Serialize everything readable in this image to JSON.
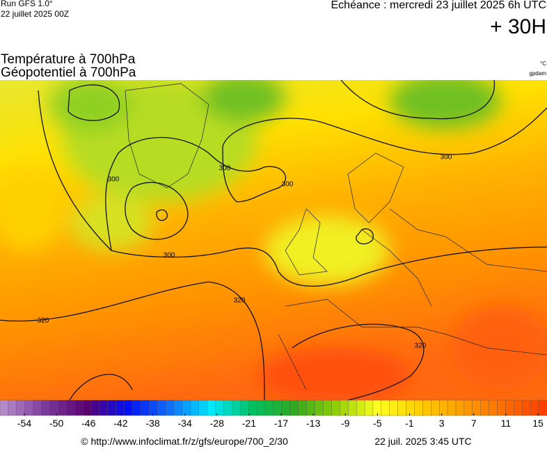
{
  "header": {
    "run": "Run GFS 1.0°",
    "run_date": "22 juillet 2025 00Z",
    "echeance": "Echéance : mercredi 23 juillet 2025 6h UTC",
    "lead": "+ 30H",
    "title1": "Température à 700hPa",
    "title2": "Géopotentiel à 700hPa",
    "unit1": "°C",
    "unit2": "gpdam"
  },
  "contour_labels": [
    "300",
    "300",
    "300",
    "300",
    "300",
    "320",
    "320",
    "320"
  ],
  "colorbar": {
    "ticks": [
      -54,
      -50,
      -46,
      -42,
      -38,
      -34,
      -28,
      -21,
      -17,
      -13,
      -9,
      -5,
      -1,
      3,
      7,
      11,
      15
    ],
    "colors": [
      "#b58ac8",
      "#7a3a9a",
      "#5a0070",
      "#0010ff",
      "#1070ff",
      "#00e8ff",
      "#00c060",
      "#30a820",
      "#90d000",
      "#ffff20",
      "#ffd000",
      "#ffa000",
      "#ff7000",
      "#ff4000"
    ]
  },
  "footer": {
    "source": "© http://www.infoclimat.fr/z/gfs/europe/700_2/30",
    "date": "22 juil. 2025  3:45 UTC"
  }
}
